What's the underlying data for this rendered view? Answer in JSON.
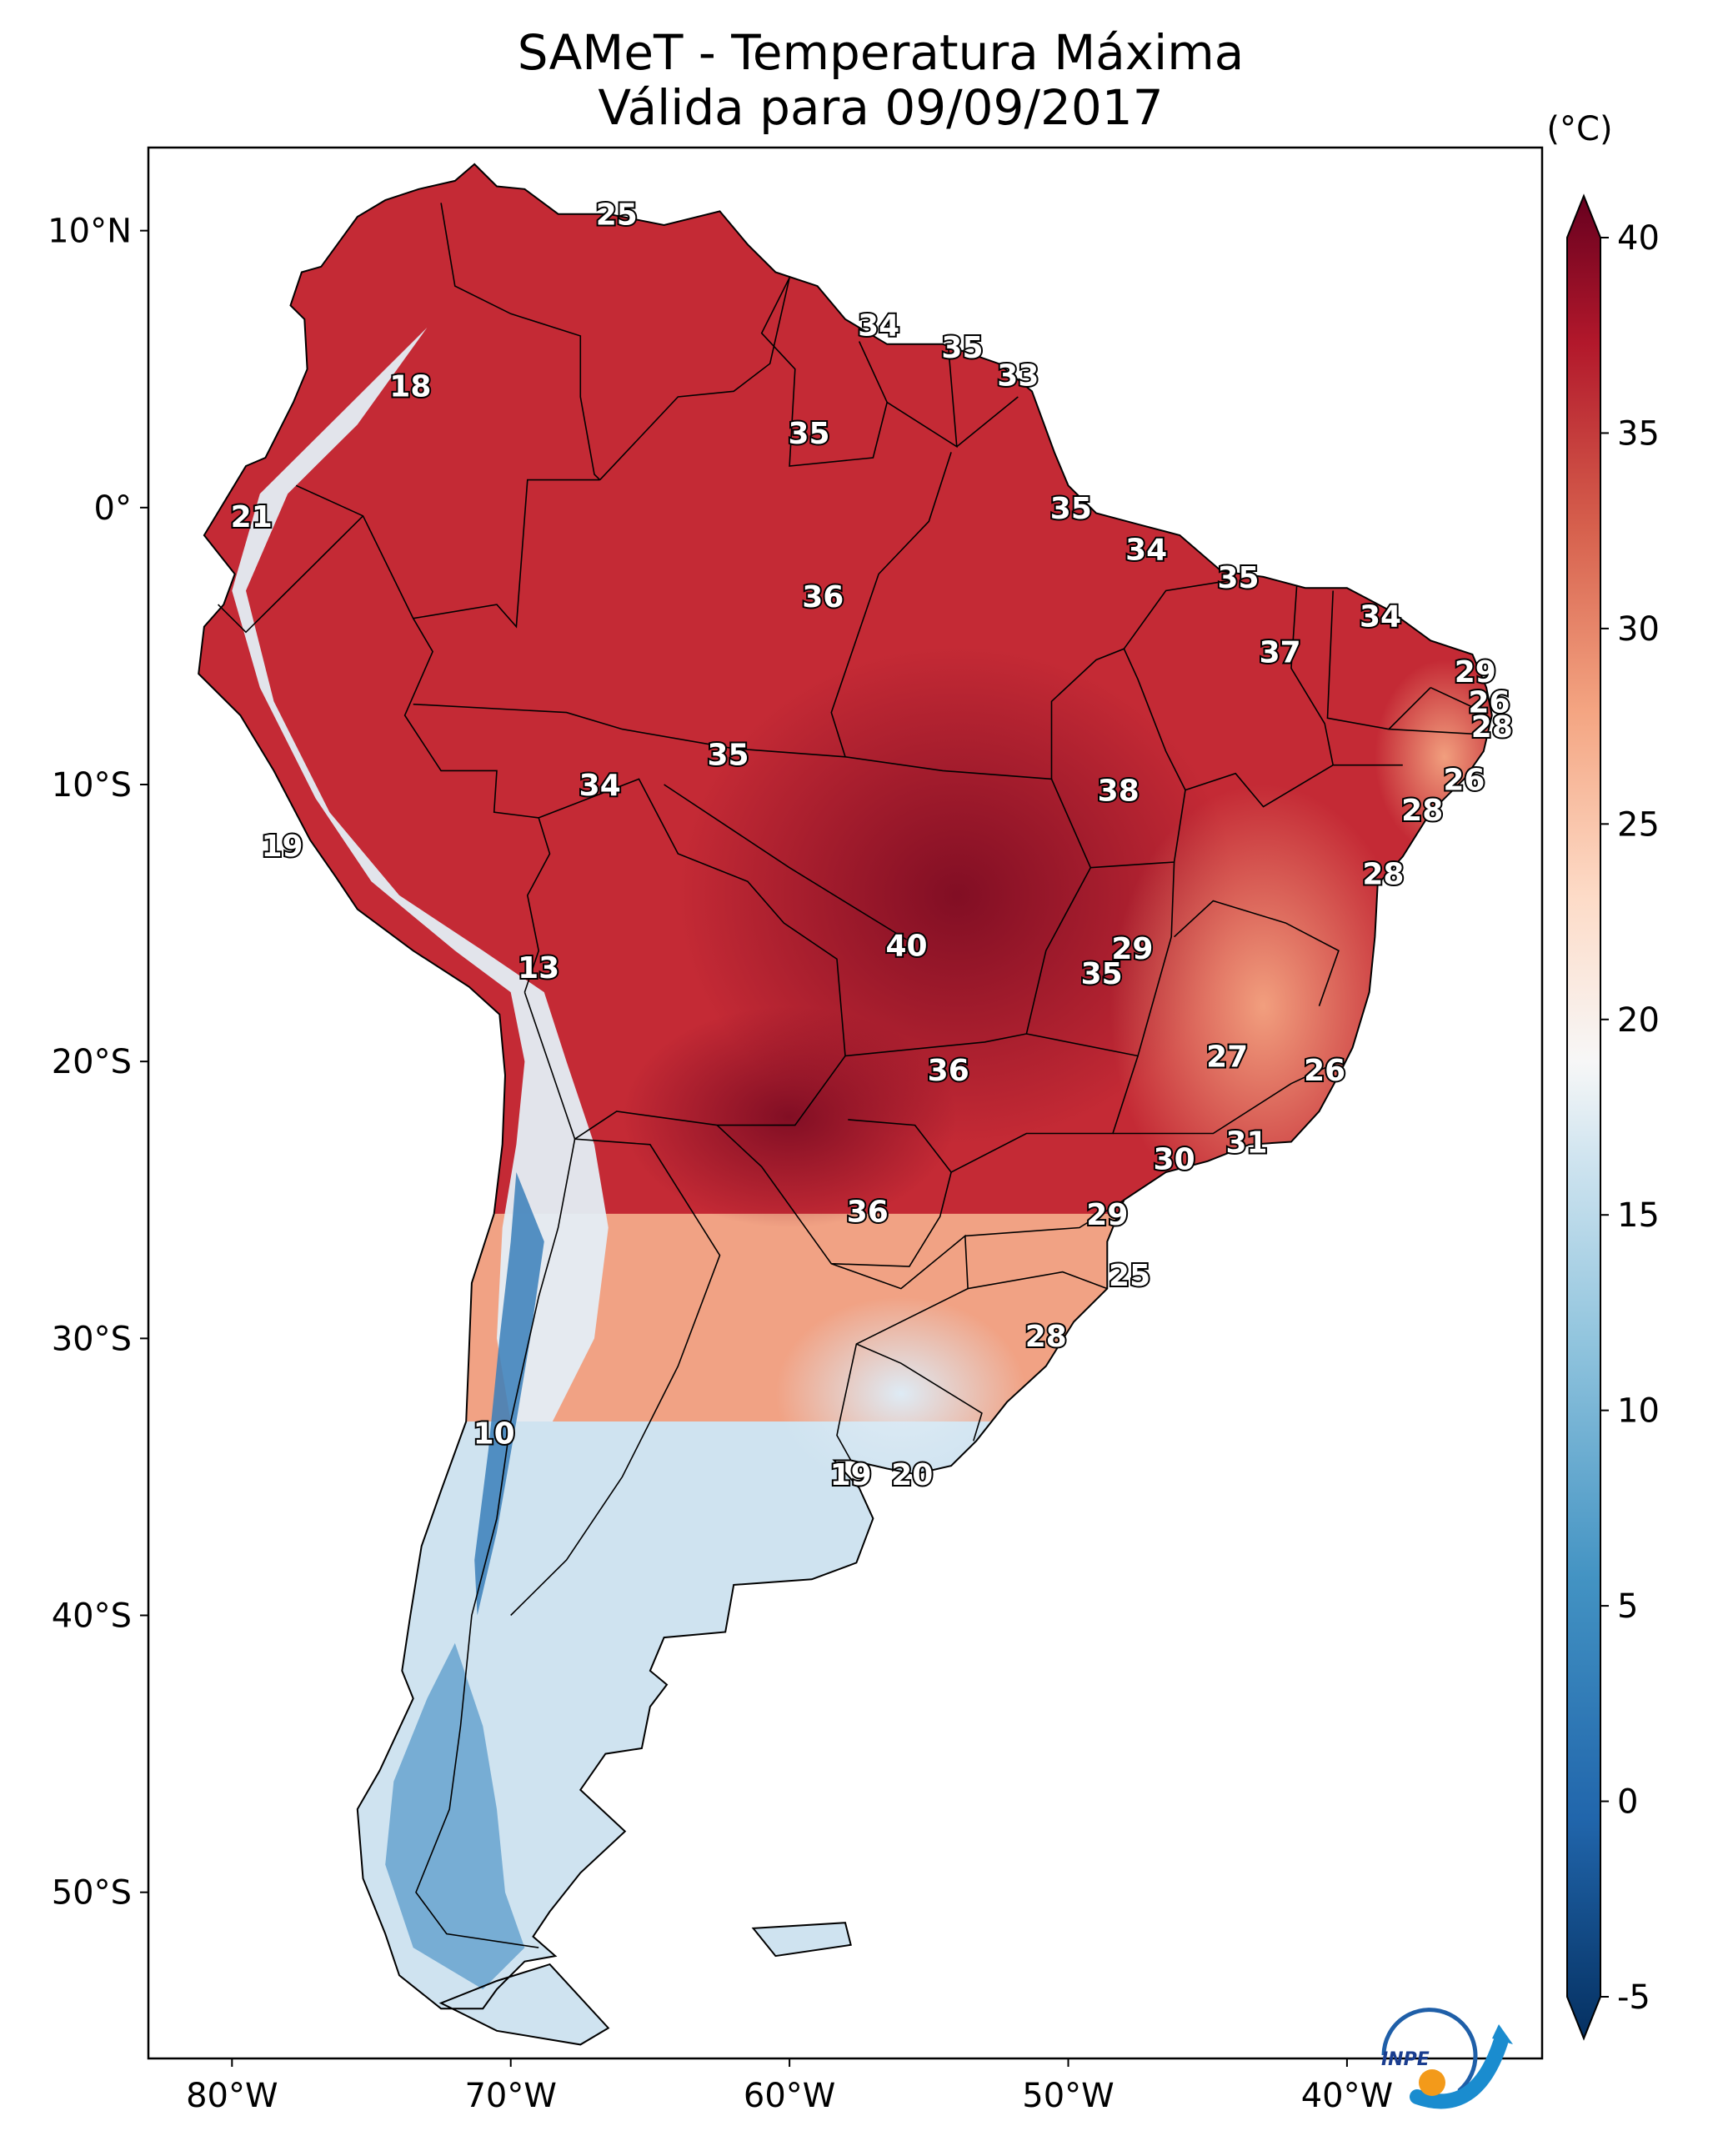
{
  "title": {
    "line1": "SAMeT - Temperatura Máxima",
    "line2": "Válida para 09/09/2017"
  },
  "map": {
    "lon_ticks": [
      {
        "lon": -80,
        "label": "80°W"
      },
      {
        "lon": -70,
        "label": "70°W"
      },
      {
        "lon": -60,
        "label": "60°W"
      },
      {
        "lon": -50,
        "label": "50°W"
      },
      {
        "lon": -40,
        "label": "40°W"
      }
    ],
    "lat_ticks": [
      {
        "lat": 10,
        "label": "10°N"
      },
      {
        "lat": 0,
        "label": "0°"
      },
      {
        "lat": -10,
        "label": "10°S"
      },
      {
        "lat": -20,
        "label": "20°S"
      },
      {
        "lat": -30,
        "label": "30°S"
      },
      {
        "lat": -40,
        "label": "40°S"
      },
      {
        "lat": -50,
        "label": "50°S"
      }
    ],
    "extent": {
      "lon_min": -83,
      "lon_max": -33,
      "lat_min": -56,
      "lat_max": 13
    },
    "ocean_color": "#ffffff",
    "border_color": "#000000"
  },
  "chart_data": {
    "type": "heatmap",
    "variable": "Temperatura Máxima",
    "units": "(°C)",
    "colorbar": {
      "min": -5,
      "max": 40,
      "ticks": [
        40,
        35,
        30,
        25,
        20,
        15,
        10,
        5,
        0,
        -5
      ],
      "colormap": "RdBu_r",
      "extend": "both"
    },
    "annotations": [
      {
        "lon": -66.2,
        "lat": 10.6,
        "value": "25"
      },
      {
        "lon": -56.8,
        "lat": 6.6,
        "value": "34"
      },
      {
        "lon": -53.8,
        "lat": 5.8,
        "value": "35"
      },
      {
        "lon": -51.8,
        "lat": 4.8,
        "value": "33"
      },
      {
        "lon": -73.6,
        "lat": 4.4,
        "value": "18"
      },
      {
        "lon": -59.3,
        "lat": 2.7,
        "value": "35"
      },
      {
        "lon": -49.9,
        "lat": 0.0,
        "value": "35"
      },
      {
        "lon": -79.3,
        "lat": -0.3,
        "value": "21"
      },
      {
        "lon": -47.2,
        "lat": -1.5,
        "value": "34"
      },
      {
        "lon": -43.9,
        "lat": -2.5,
        "value": "35"
      },
      {
        "lon": -58.8,
        "lat": -3.2,
        "value": "36"
      },
      {
        "lon": -38.8,
        "lat": -3.9,
        "value": "34"
      },
      {
        "lon": -42.4,
        "lat": -5.2,
        "value": "37"
      },
      {
        "lon": -35.4,
        "lat": -5.9,
        "value": "29"
      },
      {
        "lon": -34.9,
        "lat": -7.0,
        "value": "26"
      },
      {
        "lon": -34.8,
        "lat": -7.9,
        "value": "28"
      },
      {
        "lon": -62.2,
        "lat": -8.9,
        "value": "35"
      },
      {
        "lon": -35.8,
        "lat": -9.8,
        "value": "26"
      },
      {
        "lon": -66.8,
        "lat": -10.0,
        "value": "34"
      },
      {
        "lon": -48.2,
        "lat": -10.2,
        "value": "38"
      },
      {
        "lon": -37.3,
        "lat": -10.9,
        "value": "28"
      },
      {
        "lon": -78.2,
        "lat": -12.2,
        "value": "19"
      },
      {
        "lon": -38.7,
        "lat": -13.2,
        "value": "28"
      },
      {
        "lon": -55.8,
        "lat": -15.8,
        "value": "40"
      },
      {
        "lon": -47.7,
        "lat": -15.9,
        "value": "29"
      },
      {
        "lon": -69.0,
        "lat": -16.6,
        "value": "13"
      },
      {
        "lon": -48.8,
        "lat": -16.8,
        "value": "35"
      },
      {
        "lon": -44.3,
        "lat": -19.8,
        "value": "27"
      },
      {
        "lon": -54.3,
        "lat": -20.3,
        "value": "36"
      },
      {
        "lon": -40.8,
        "lat": -20.3,
        "value": "26"
      },
      {
        "lon": -43.6,
        "lat": -22.9,
        "value": "31"
      },
      {
        "lon": -46.2,
        "lat": -23.5,
        "value": "30"
      },
      {
        "lon": -57.2,
        "lat": -25.4,
        "value": "36"
      },
      {
        "lon": -48.6,
        "lat": -25.5,
        "value": "29"
      },
      {
        "lon": -47.8,
        "lat": -27.7,
        "value": "25"
      },
      {
        "lon": -50.8,
        "lat": -29.9,
        "value": "28"
      },
      {
        "lon": -70.6,
        "lat": -33.4,
        "value": "10"
      },
      {
        "lon": -57.8,
        "lat": -34.9,
        "value": "19"
      },
      {
        "lon": -55.6,
        "lat": -34.9,
        "value": "20"
      }
    ]
  }
}
